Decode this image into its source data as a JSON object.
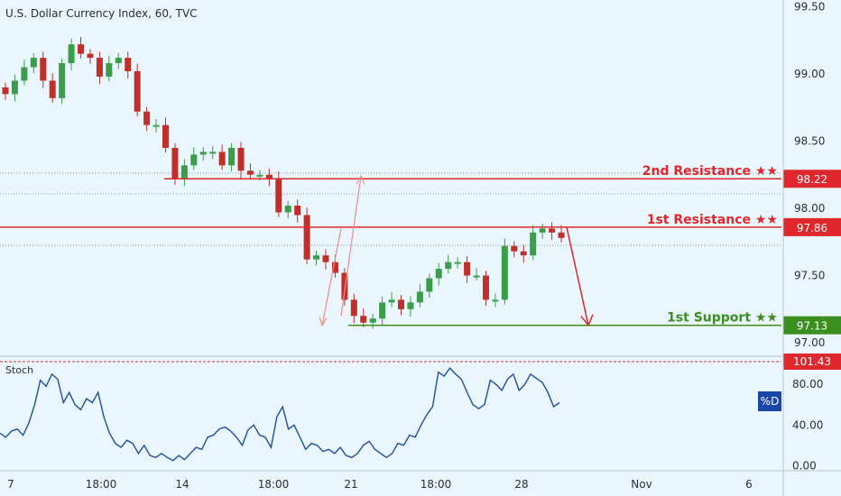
{
  "chart_title": "U.S. Dollar Currency Index, 60, TVC",
  "indicator_label": "Stoch",
  "colors": {
    "background": "#e9f6fd",
    "resistance": "#e0272d",
    "support": "#3a8f1f",
    "candle_up": "#3a9d4a",
    "candle_down": "#c0302a",
    "stoch_line": "#1f4e9d",
    "d_badge": "#1c47a6",
    "axis_text": "#2a2e39",
    "dotted_line": "#8a9aa8",
    "projection_light": "#f08a8a"
  },
  "chart_data": [
    {
      "type": "candlestick",
      "title": "U.S. Dollar Currency Index, 60, TVC",
      "ylim": [
        96.92,
        99.55
      ],
      "y_ticks": [
        {
          "value": 99.5,
          "label": "99.50"
        },
        {
          "value": 99.0,
          "label": "99.00"
        },
        {
          "value": 98.5,
          "label": "98.50"
        },
        {
          "value": 98.0,
          "label": "98.00"
        },
        {
          "value": 97.5,
          "label": "97.50"
        },
        {
          "value": 97.0,
          "label": "97.00"
        }
      ],
      "x_ticks": [
        "7",
        "18:00",
        "14",
        "18:00",
        "21",
        "18:00",
        "28",
        "Nov",
        "6"
      ],
      "series": [
        {
          "values": [
            98.85,
            98.95,
            99.05,
            99.12,
            98.95,
            98.82,
            99.08,
            99.22,
            99.15,
            99.12,
            98.98,
            99.08,
            99.12,
            99.02,
            98.72,
            98.62,
            98.62,
            98.45,
            98.22,
            98.32,
            98.4,
            98.42,
            98.42,
            98.32,
            98.45,
            98.28,
            98.25,
            98.25,
            98.22,
            97.97,
            98.02,
            97.95,
            97.62,
            97.65,
            97.6,
            97.52,
            97.32,
            97.2,
            97.15,
            97.18,
            97.3,
            97.32,
            97.25,
            97.3,
            97.38,
            97.48,
            97.55,
            97.6,
            97.6,
            97.5,
            97.5,
            97.32,
            97.32,
            97.72,
            97.68,
            97.65,
            97.82,
            97.85,
            97.82,
            97.78
          ]
        }
      ],
      "levels": [
        {
          "label": "2nd Resistance ★★",
          "value": 98.22,
          "price_tag": "98.22"
        },
        {
          "label": "1st Resistance ★★",
          "value": 97.86,
          "price_tag": "97.86"
        },
        {
          "label": "1st Support ★★",
          "value": 97.13,
          "price_tag": "97.13"
        }
      ]
    },
    {
      "type": "line",
      "title": "Stoch",
      "ylim": [
        -5,
        105
      ],
      "y_ticks": [
        {
          "value": 80,
          "label": "80.00"
        },
        {
          "value": 40,
          "label": "40.00"
        },
        {
          "value": 0,
          "label": "0.00"
        }
      ],
      "series": [
        {
          "name": "%D",
          "values": [
            32,
            28,
            34,
            36,
            30,
            42,
            60,
            84,
            78,
            90,
            85,
            62,
            72,
            60,
            55,
            66,
            62,
            72,
            48,
            32,
            22,
            18,
            25,
            22,
            12,
            20,
            10,
            8,
            12,
            8,
            5,
            10,
            6,
            12,
            18,
            16,
            28,
            30,
            36,
            38,
            34,
            28,
            20,
            35,
            40,
            30,
            28,
            18,
            48,
            58,
            36,
            40,
            28,
            16,
            22,
            20,
            14,
            16,
            12,
            18,
            10,
            8,
            12,
            20,
            24,
            16,
            12,
            8,
            12,
            22,
            20,
            30,
            28,
            40,
            50,
            58,
            92,
            88,
            96,
            90,
            85,
            72,
            60,
            56,
            60,
            84,
            80,
            74,
            85,
            90,
            74,
            80,
            90,
            86,
            82,
            72,
            58,
            62
          ]
        }
      ],
      "reference_value": {
        "value": 101.43,
        "label": "101.43"
      }
    }
  ]
}
